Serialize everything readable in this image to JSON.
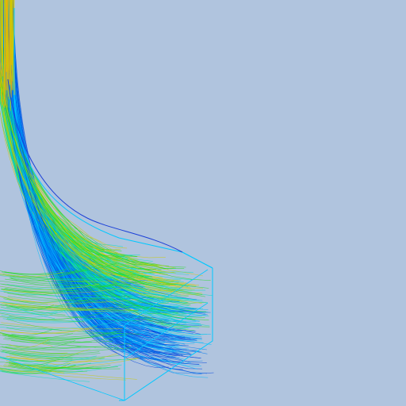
{
  "viewport": {
    "background_color": "#b0c4de"
  },
  "visualization": {
    "kind": "streamlines",
    "color_ramp": [
      "#0044dd",
      "#0077ee",
      "#00bbff",
      "#00e0c0",
      "#22dd22",
      "#cccc00",
      "#ffaa00"
    ],
    "outline_color": "#00c8ff",
    "outline_dark_color": "#1a3fd8"
  }
}
